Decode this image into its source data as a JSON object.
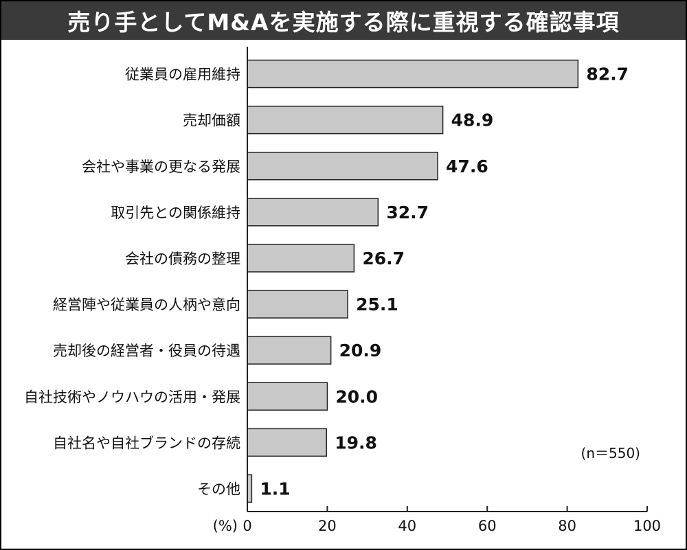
{
  "title": "売り手としてM&Aを実施する際に重視する確認事項",
  "colors": {
    "title_bg": "#3a3a3a",
    "title_text": "#ffffff",
    "bar_fill": "#c8c8c8",
    "bar_stroke": "#222222",
    "axis": "#222222"
  },
  "chart_data": {
    "type": "bar",
    "orientation": "horizontal",
    "title": "売り手としてM&Aを実施する際に重視する確認事項",
    "categories": [
      "従業員の雇用維持",
      "売却価額",
      "会社や事業の更なる発展",
      "取引先との関係維持",
      "会社の債務の整理",
      "経営陣や従業員の人柄や意向",
      "売却後の経営者・役員の待遇",
      "自社技術やノウハウの活用・発展",
      "自社名や自社ブランドの存続",
      "その他"
    ],
    "values": [
      82.7,
      48.9,
      47.6,
      32.7,
      26.7,
      25.1,
      20.9,
      20.0,
      19.8,
      1.1
    ],
    "value_labels": [
      "82.7",
      "48.9",
      "47.6",
      "32.7",
      "26.7",
      "25.1",
      "20.9",
      "20.0",
      "19.8",
      "1.1"
    ],
    "xlim": [
      0,
      100
    ],
    "x_ticks": [
      0,
      20,
      40,
      60,
      80,
      100
    ],
    "x_tick_labels": [
      "0",
      "20",
      "40",
      "60",
      "80",
      "100"
    ],
    "xlabel": "(%)",
    "ylabel": "",
    "grid": false,
    "legend": "none",
    "annotation": "(n＝550)"
  }
}
